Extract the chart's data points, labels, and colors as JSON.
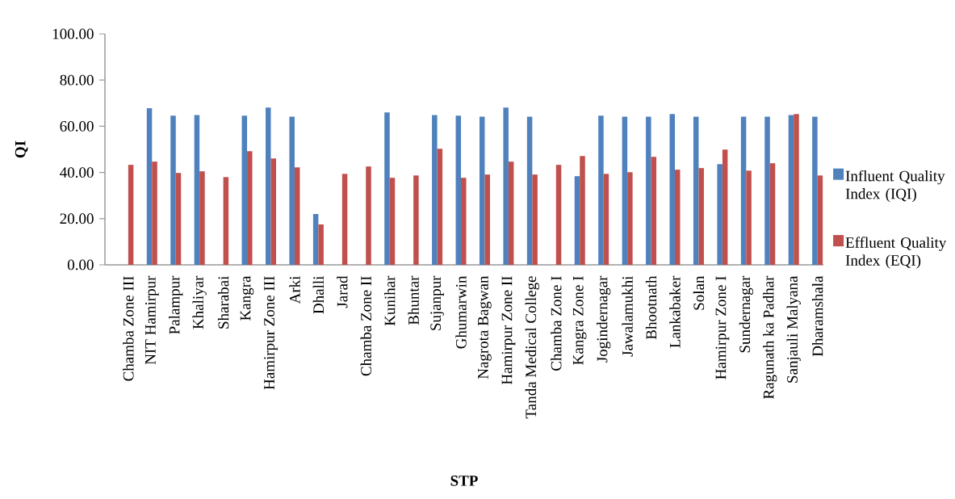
{
  "chart_data": {
    "type": "bar",
    "xlabel": "STP",
    "ylabel": "QI",
    "categories": [
      "Chamba Zone III",
      "NIT Hamirpur",
      "Palampur",
      "Khaliyar",
      "Sharabai",
      "Kangra",
      "Hamirpur Zone III",
      "Arki",
      "Dhalli",
      "Jarad",
      "Chamba Zone II",
      "Kunihar",
      "Bhuntar",
      "Sujanpur",
      "Ghumarwin",
      "Nagrota Bagwan",
      "Hamirpur Zone II",
      "Tanda Medical College",
      "Chamba Zone I",
      "Kangra Zone I",
      "Jogindernagar",
      "Jawalamukhi",
      "Bhootnath",
      "Lankabaker",
      "Solan",
      "Hamirpur Zone I",
      "Sundernagar",
      "Ragunath ka Padhar",
      "Sanjauli Malyana",
      "Dharamshala"
    ],
    "series": [
      {
        "name": "Influent Quality Index (IQI)",
        "color": "#4f81bd",
        "values": [
          null,
          67.8,
          64.6,
          64.9,
          null,
          64.6,
          68.1,
          64.2,
          22.0,
          null,
          null,
          66.0,
          null,
          64.9,
          64.6,
          64.2,
          68.1,
          64.2,
          null,
          38.4,
          64.6,
          64.2,
          64.2,
          65.3,
          64.2,
          43.6,
          64.2,
          64.2,
          64.9,
          64.2
        ]
      },
      {
        "name": "Effluent Quality Index (EQI)",
        "color": "#c0504d",
        "values": [
          43.3,
          44.7,
          39.8,
          40.5,
          38.0,
          49.2,
          46.1,
          42.2,
          17.5,
          39.4,
          42.6,
          37.7,
          38.7,
          50.3,
          37.7,
          39.1,
          44.7,
          39.1,
          43.3,
          47.1,
          39.4,
          40.1,
          46.8,
          41.2,
          41.9,
          49.9,
          40.8,
          44.0,
          65.3,
          38.7
        ]
      }
    ],
    "ylim": [
      0,
      100
    ],
    "yticks": [
      {
        "value": 0,
        "label": "0.00"
      },
      {
        "value": 20,
        "label": "20.00"
      },
      {
        "value": 40,
        "label": "40.00"
      },
      {
        "value": 60,
        "label": "60.00"
      },
      {
        "value": 80,
        "label": "80.00"
      },
      {
        "value": 100,
        "label": "100.00"
      }
    ],
    "legend": "right"
  }
}
